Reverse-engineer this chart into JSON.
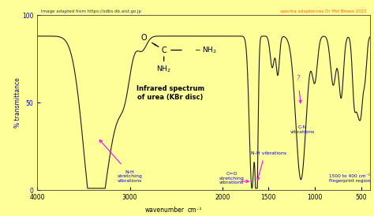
{
  "title_line1": "Infrared spectrum",
  "title_line2": "of urea (KBr disc)",
  "xlabel": "wavenumber",
  "xlabel2": "cm⁻¹",
  "ylabel": "% transmittance",
  "xlim": [
    4000,
    400
  ],
  "ylim": [
    0,
    100
  ],
  "yticks": [
    0,
    50,
    100
  ],
  "xticks": [
    4000,
    3000,
    2000,
    1500,
    1000,
    500
  ],
  "background_color": "#ffff99",
  "line_color": "#1a1a1a",
  "header_left": "Image adapted from https://sdbs.db.aist.go.jp",
  "header_right": "spectra adaptations Dr Phil Brown 2022",
  "header_right_color": "#ff6600",
  "label_color": "#0000cc",
  "arrow_color": "#ff00ff",
  "annotation_nh_stretch": "N-H\nstretching\nvibrations",
  "annotation_co": "C=O\nstretching\nvibrations",
  "annotation_nh_vib": "N-H vibrations",
  "annotation_cn": "C-N\nvibrations",
  "annotation_cn_q": "?",
  "annotation_fingerprint": "1500 to 400 cm⁻¹\nFingerprint region"
}
